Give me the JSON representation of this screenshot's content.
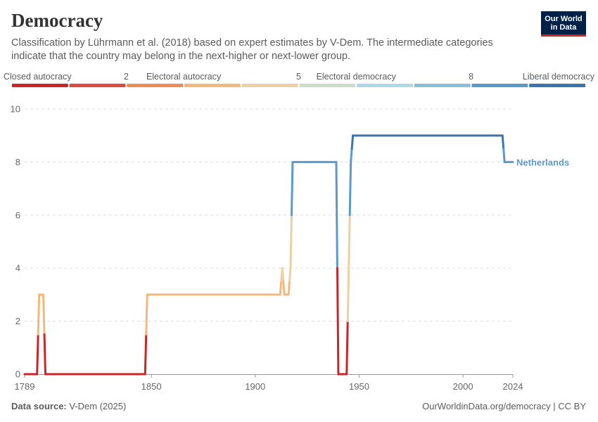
{
  "header": {
    "title": "Democracy",
    "subtitle": "Classification by Lührmann et al. (2018) based on expert estimates by V-Dem. The intermediate categories indicate that the country may belong in the next-higher or next-lower group.",
    "logo_line1": "Our World",
    "logo_line2": "in Data"
  },
  "footer": {
    "source_label": "Data source:",
    "source_value": "V-Dem (2025)",
    "url": "OurWorldinData.org/democracy | CC BY"
  },
  "legend": {
    "labels": [
      {
        "text": "Closed autocracy",
        "value": 0
      },
      {
        "text": "2",
        "value": 2
      },
      {
        "text": "Electoral autocracy",
        "value": 3
      },
      {
        "text": "5",
        "value": 5
      },
      {
        "text": "Electoral democracy",
        "value": 6
      },
      {
        "text": "8",
        "value": 8
      },
      {
        "text": "Liberal democracy",
        "value": 9
      }
    ],
    "bins": [
      {
        "value": 0,
        "color": "#ca2628"
      },
      {
        "value": 1,
        "color": "#e04a3c"
      },
      {
        "value": 2,
        "color": "#ee8c58"
      },
      {
        "value": 3,
        "color": "#f4b87b"
      },
      {
        "value": 4,
        "color": "#eccfa5"
      },
      {
        "value": 5,
        "color": "#cbdcc8"
      },
      {
        "value": 6,
        "color": "#addae6"
      },
      {
        "value": 7,
        "color": "#88c0d9"
      },
      {
        "value": 8,
        "color": "#5a9ac9"
      },
      {
        "value": 9,
        "color": "#3976b0"
      }
    ]
  },
  "chart_data": {
    "type": "line",
    "title": "Democracy",
    "xlabel": "",
    "ylabel": "",
    "xlim": [
      1789,
      2024
    ],
    "ylim": [
      0,
      10
    ],
    "x_ticks": [
      1789,
      1850,
      1900,
      1950,
      2000,
      2024
    ],
    "y_ticks": [
      0,
      2,
      4,
      6,
      8,
      10
    ],
    "grid": "horizontal dashed",
    "series": [
      {
        "name": "Netherlands",
        "color": "#5a9ac9",
        "points": [
          [
            1789,
            0
          ],
          [
            1795,
            0
          ],
          [
            1796,
            3
          ],
          [
            1798,
            3
          ],
          [
            1799,
            0
          ],
          [
            1847,
            0
          ],
          [
            1848,
            3
          ],
          [
            1912,
            3
          ],
          [
            1913,
            4
          ],
          [
            1914,
            3
          ],
          [
            1916,
            3
          ],
          [
            1917,
            4
          ],
          [
            1918,
            8
          ],
          [
            1939,
            8
          ],
          [
            1940,
            0
          ],
          [
            1944,
            0
          ],
          [
            1945,
            4
          ],
          [
            1946,
            8
          ],
          [
            1947,
            9
          ],
          [
            2019,
            9
          ],
          [
            2020,
            8
          ],
          [
            2024,
            8
          ]
        ]
      }
    ]
  }
}
